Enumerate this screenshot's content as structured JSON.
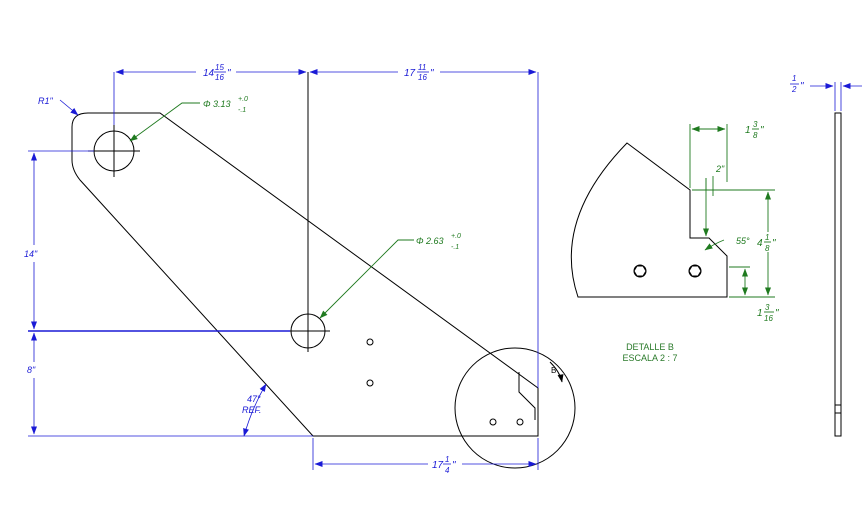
{
  "main_view": {
    "dims": {
      "radius": "R1\"",
      "w1_whole": "14",
      "w1_num": "15",
      "w1_den": "16",
      "w2_whole": "17",
      "w2_num": "11",
      "w2_den": "16",
      "h1": "14\"",
      "h2": "8\"",
      "angle": "47°",
      "angle_ref": "REF.",
      "bottom_whole": "17",
      "bottom_num": "1",
      "bottom_den": "4"
    },
    "holes": {
      "large_dia": "Φ 3.13",
      "large_tol_plus": "+.0",
      "large_tol_minus": "-.1",
      "mid_dia": "Φ 2.63",
      "mid_tol_plus": "+.0",
      "mid_tol_minus": "-.1"
    },
    "detail_marker": "B"
  },
  "detail_view": {
    "dims": {
      "top_whole": "1",
      "top_num": "3",
      "top_den": "8",
      "notch": "2\"",
      "angle": "55°",
      "height_whole": "4",
      "height_num": "1",
      "height_den": "8",
      "lower_whole": "1",
      "lower_num": "3",
      "lower_den": "16"
    },
    "label_line1": "DETALLE B",
    "label_line2": "ESCALA 2 : 7"
  },
  "side_view": {
    "thickness_num": "1",
    "thickness_den": "2"
  },
  "colors": {
    "outline": "#000000",
    "dimension": "#1a1ad6",
    "annotation": "#1f7a1f"
  }
}
